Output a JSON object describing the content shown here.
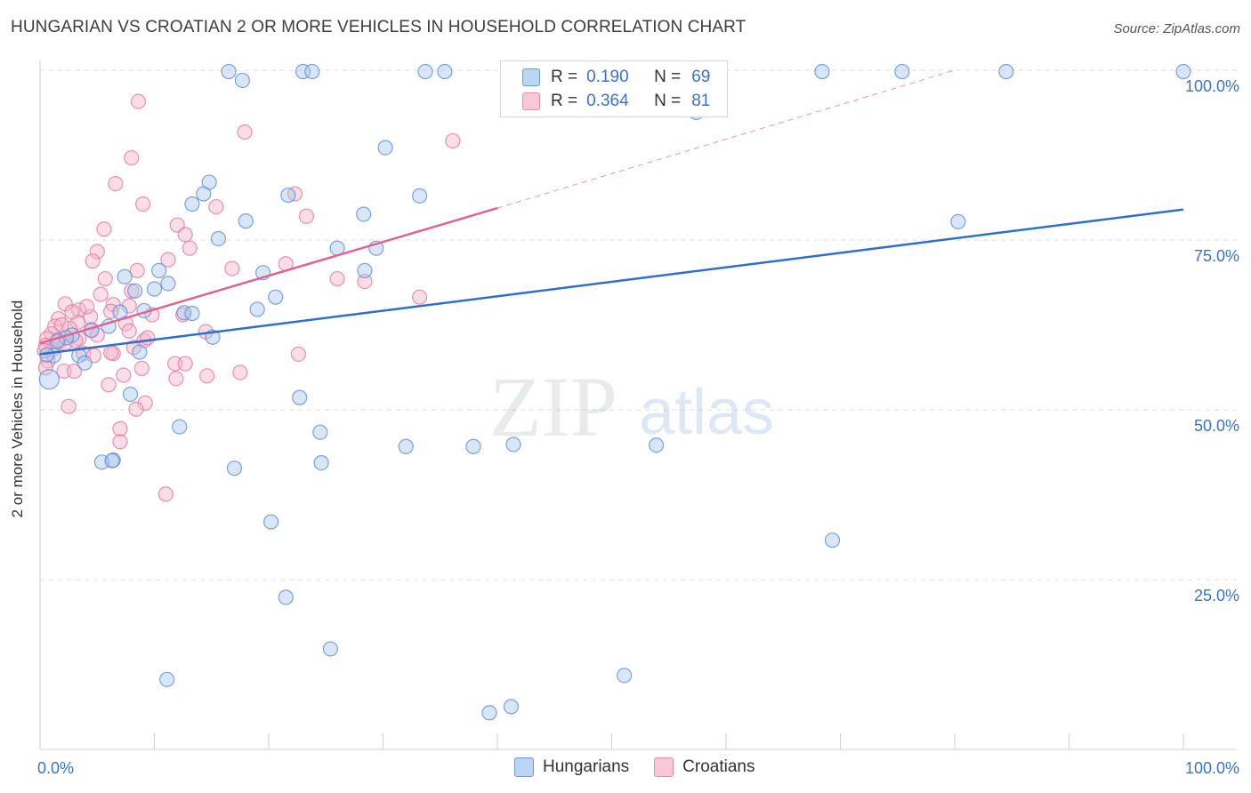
{
  "title": "HUNGARIAN VS CROATIAN 2 OR MORE VEHICLES IN HOUSEHOLD CORRELATION CHART",
  "source": "Source: ZipAtlas.com",
  "watermark": {
    "zip": "ZIP",
    "atlas": "atlas"
  },
  "legend": {
    "rows": [
      {
        "r_key": "R =",
        "r_value": "0.190",
        "n_key": "N =",
        "n_value": "69"
      },
      {
        "r_key": "R =",
        "r_value": "0.364",
        "n_key": "N =",
        "n_value": "81"
      }
    ]
  },
  "bottom_legend": {
    "series1": "Hungarians",
    "series2": "Croatians"
  },
  "colors": {
    "blue_fill": "#a9c8ee",
    "blue_stroke": "#5b8fd6",
    "blue_line": "#2f6fc9",
    "pink_fill": "#f4b3c8",
    "pink_stroke": "#e3799d",
    "pink_line": "#e0648f",
    "tick_label": "#3a73c6",
    "grid": "#dcdcdc"
  },
  "chart_data": {
    "type": "scatter",
    "title": "HUNGARIAN VS CROATIAN 2 OR MORE VEHICLES IN HOUSEHOLD CORRELATION CHART",
    "xlabel": "",
    "ylabel": "2 or more Vehicles in Household",
    "xlim": [
      0,
      100
    ],
    "ylim": [
      0,
      100
    ],
    "x_tick_labels": [
      "0.0%",
      "100.0%"
    ],
    "y_ticks": [
      25,
      50,
      75,
      100
    ],
    "y_tick_labels": [
      "25.0%",
      "50.0%",
      "75.0%",
      "100.0%"
    ],
    "grid": true,
    "series": [
      {
        "name": "Hungarians",
        "r": 0.19,
        "n": 69,
        "trend": {
          "x": [
            0,
            100
          ],
          "y": [
            58.2,
            79.5
          ],
          "dashed_extension": false
        },
        "points": [
          [
            16.5,
            99.8
          ],
          [
            17.7,
            98.5
          ],
          [
            23.0,
            99.8
          ],
          [
            23.8,
            99.8
          ],
          [
            33.7,
            99.8
          ],
          [
            35.4,
            99.8
          ],
          [
            68.4,
            99.8
          ],
          [
            75.4,
            99.8
          ],
          [
            84.5,
            99.8
          ],
          [
            100,
            99.8
          ],
          [
            57.4,
            93.8
          ],
          [
            30.2,
            88.6
          ],
          [
            14.8,
            83.5
          ],
          [
            14.3,
            81.8
          ],
          [
            21.7,
            81.6
          ],
          [
            33.2,
            81.5
          ],
          [
            13.3,
            80.3
          ],
          [
            28.3,
            78.8
          ],
          [
            18.0,
            77.8
          ],
          [
            80.3,
            77.7
          ],
          [
            15.6,
            75.2
          ],
          [
            26.0,
            73.8
          ],
          [
            29.4,
            73.8
          ],
          [
            10.4,
            70.5
          ],
          [
            19.5,
            70.2
          ],
          [
            28.4,
            70.5
          ],
          [
            7.4,
            69.6
          ],
          [
            11.2,
            68.6
          ],
          [
            8.3,
            67.5
          ],
          [
            10.0,
            67.8
          ],
          [
            20.6,
            66.6
          ],
          [
            19.0,
            64.8
          ],
          [
            9.1,
            64.6
          ],
          [
            7.0,
            64.4
          ],
          [
            12.6,
            64.3
          ],
          [
            13.3,
            64.2
          ],
          [
            2.8,
            61.0
          ],
          [
            6.0,
            62.3
          ],
          [
            4.5,
            61.7
          ],
          [
            15.1,
            60.7
          ],
          [
            2.3,
            60.6
          ],
          [
            1.5,
            60.1
          ],
          [
            1.2,
            58.0
          ],
          [
            3.4,
            58.0
          ],
          [
            8.7,
            58.5
          ],
          [
            3.9,
            56.9
          ],
          [
            0.8,
            54.5
          ],
          [
            7.9,
            52.3
          ],
          [
            22.7,
            51.8
          ],
          [
            12.2,
            47.5
          ],
          [
            24.5,
            46.7
          ],
          [
            32.0,
            44.6
          ],
          [
            37.9,
            44.6
          ],
          [
            41.4,
            44.9
          ],
          [
            53.9,
            44.8
          ],
          [
            6.4,
            42.6
          ],
          [
            5.4,
            42.3
          ],
          [
            24.6,
            42.2
          ],
          [
            17.0,
            41.4
          ],
          [
            69.3,
            30.8
          ],
          [
            20.2,
            33.5
          ],
          [
            21.5,
            22.4
          ],
          [
            25.4,
            14.8
          ],
          [
            11.1,
            10.3
          ],
          [
            51.1,
            10.9
          ],
          [
            39.3,
            5.4
          ],
          [
            41.2,
            6.3
          ],
          [
            6.3,
            42.5
          ],
          [
            0.6,
            58.1
          ]
        ]
      },
      {
        "name": "Croatians",
        "r": 0.364,
        "n": 81,
        "trend": {
          "x": [
            0,
            40
          ],
          "y": [
            59.8,
            79.7
          ],
          "dashed_extension": true,
          "extension_to": [
            80,
            100
          ]
        },
        "points": [
          [
            8.6,
            95.4
          ],
          [
            36.1,
            89.6
          ],
          [
            17.9,
            90.9
          ],
          [
            8.0,
            87.1
          ],
          [
            6.6,
            83.3
          ],
          [
            22.3,
            81.8
          ],
          [
            9.0,
            80.3
          ],
          [
            15.4,
            79.9
          ],
          [
            23.3,
            78.5
          ],
          [
            12.0,
            77.2
          ],
          [
            5.6,
            76.6
          ],
          [
            12.7,
            75.8
          ],
          [
            13.1,
            73.8
          ],
          [
            5.0,
            73.3
          ],
          [
            4.6,
            71.9
          ],
          [
            11.2,
            72.1
          ],
          [
            21.5,
            71.5
          ],
          [
            16.8,
            70.8
          ],
          [
            8.5,
            70.5
          ],
          [
            26.0,
            69.3
          ],
          [
            28.4,
            68.9
          ],
          [
            5.7,
            69.3
          ],
          [
            33.2,
            66.6
          ],
          [
            5.3,
            67.0
          ],
          [
            2.2,
            65.6
          ],
          [
            6.4,
            65.5
          ],
          [
            7.8,
            65.3
          ],
          [
            3.4,
            64.7
          ],
          [
            9.8,
            64.0
          ],
          [
            6.2,
            64.5
          ],
          [
            4.4,
            63.7
          ],
          [
            1.6,
            63.4
          ],
          [
            3.3,
            62.9
          ],
          [
            7.5,
            62.7
          ],
          [
            1.3,
            62.3
          ],
          [
            2.6,
            62.0
          ],
          [
            4.5,
            61.8
          ],
          [
            7.8,
            61.6
          ],
          [
            14.5,
            61.5
          ],
          [
            1.0,
            61.2
          ],
          [
            5.0,
            61.0
          ],
          [
            0.6,
            60.5
          ],
          [
            3.4,
            60.5
          ],
          [
            1.7,
            60.1
          ],
          [
            9.1,
            60.2
          ],
          [
            9.4,
            60.6
          ],
          [
            2.2,
            59.8
          ],
          [
            0.5,
            59.5
          ],
          [
            8.2,
            59.2
          ],
          [
            1.1,
            58.9
          ],
          [
            3.8,
            58.3
          ],
          [
            6.4,
            58.3
          ],
          [
            4.7,
            58.0
          ],
          [
            22.6,
            58.2
          ],
          [
            0.7,
            57.2
          ],
          [
            11.8,
            56.8
          ],
          [
            12.7,
            56.8
          ],
          [
            8.9,
            56.1
          ],
          [
            0.5,
            56.2
          ],
          [
            2.1,
            55.7
          ],
          [
            3.0,
            55.7
          ],
          [
            17.5,
            55.5
          ],
          [
            14.6,
            55.0
          ],
          [
            11.9,
            54.6
          ],
          [
            7.3,
            55.1
          ],
          [
            6.0,
            53.7
          ],
          [
            9.2,
            51.0
          ],
          [
            2.5,
            50.5
          ],
          [
            8.4,
            50.1
          ],
          [
            7.0,
            47.2
          ],
          [
            7.0,
            45.3
          ],
          [
            11.0,
            37.6
          ],
          [
            6.2,
            58.4
          ],
          [
            1.6,
            60.3
          ],
          [
            3.1,
            60.2
          ],
          [
            0.4,
            58.7
          ],
          [
            2.8,
            64.4
          ],
          [
            8.0,
            67.5
          ],
          [
            4.1,
            65.2
          ],
          [
            12.5,
            64.0
          ],
          [
            1.9,
            62.5
          ]
        ]
      }
    ]
  }
}
